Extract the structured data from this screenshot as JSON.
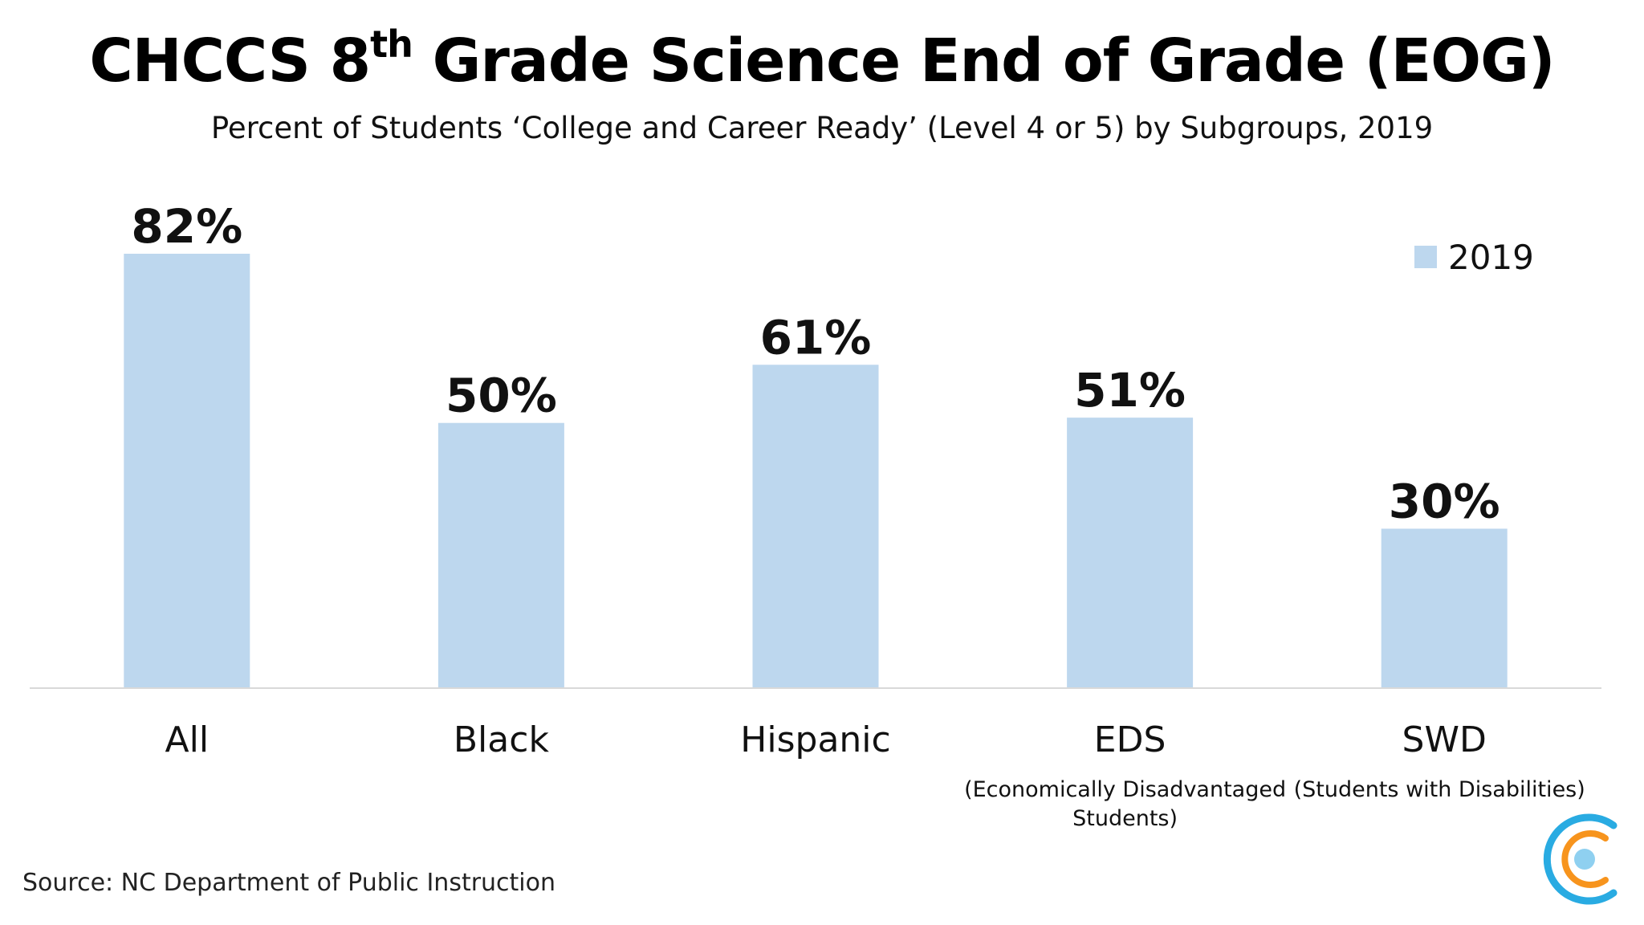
{
  "title": {
    "prefix": "CHCCS 8",
    "superscript": "th",
    "suffix": " Grade Science End of Grade (EOG)"
  },
  "subtitle": "Percent of Students ‘College and Career Ready’ (Level 4 or 5) by Subgroups, 2019",
  "source": "Source: NC Department of Public Instruction",
  "colors": {
    "bar": "#bdd7ee",
    "axis": "#d9d9d9",
    "logo_blue": "#29abe2",
    "logo_orange": "#f7941d",
    "logo_light": "#8fd0f0"
  },
  "logo": {
    "icon": "concentric-c-logo-icon"
  },
  "chart_data": {
    "type": "bar",
    "categories": [
      "All",
      "Black",
      "Hispanic",
      "EDS",
      "SWD"
    ],
    "category_notes": [
      "",
      "",
      "",
      "(Economically Disadvantaged\nStudents)",
      "(Students with Disabilities)"
    ],
    "series": [
      {
        "name": "2019",
        "values": [
          82,
          50,
          61,
          51,
          30
        ],
        "labels": [
          "82%",
          "50%",
          "61%",
          "51%",
          "30%"
        ]
      }
    ],
    "ylim": [
      0,
      100
    ],
    "grid": false,
    "legend": "top-right",
    "xlabel": "",
    "ylabel": ""
  }
}
